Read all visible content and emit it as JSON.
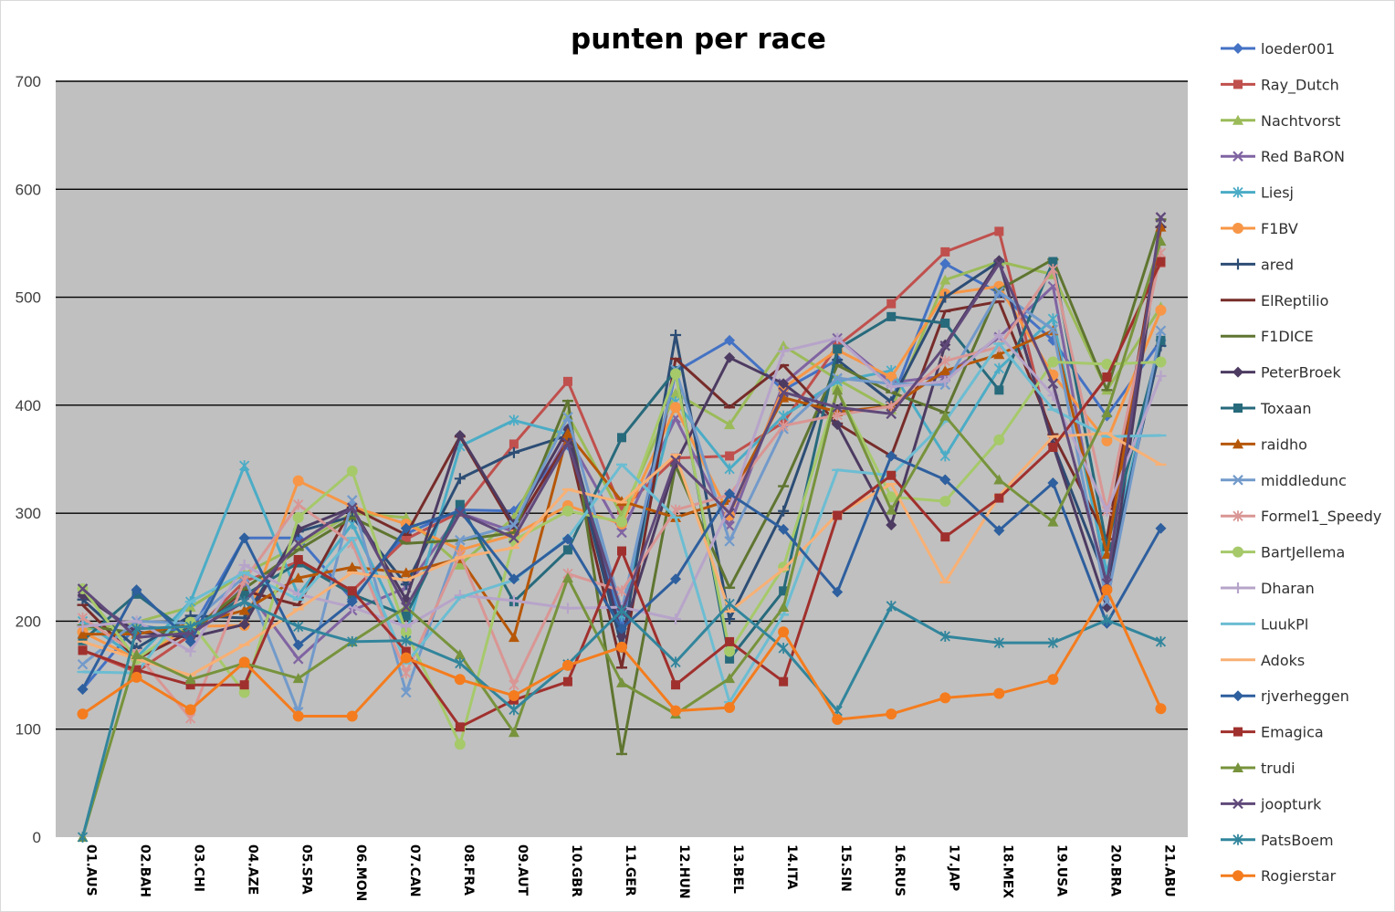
{
  "chart_data": {
    "type": "line",
    "title": "punten per race",
    "xlabel": "",
    "ylabel": "",
    "ylim": [
      0,
      700
    ],
    "yticks": [
      0,
      100,
      200,
      300,
      400,
      500,
      600,
      700
    ],
    "grid": true,
    "plot_background": "#c0c0c0",
    "legend_position": "right",
    "categories": [
      "01.AUS",
      "02.BAH",
      "03.CHI",
      "04.AZE",
      "05.SPA",
      "06.MON",
      "07.CAN",
      "08.FRA",
      "09.AUT",
      "10.GBR",
      "11.GER",
      "12.HUN",
      "13.BEL",
      "14.ITA",
      "15.SIN",
      "16.RUS",
      "17.JAP",
      "18.MEX",
      "19.USA",
      "20.BRA",
      "21.ABU"
    ],
    "series": [
      {
        "name": "loeder001",
        "color": "#4472c4",
        "marker": "diamond",
        "values": [
          137,
          196,
          190,
          277,
          277,
          220,
          281,
          303,
          302,
          363,
          197,
          431,
          460,
          414,
          442,
          403,
          531,
          504,
          460,
          390,
          460
        ]
      },
      {
        "name": "Ray_Dutch",
        "color": "#c0504d",
        "marker": "square",
        "values": [
          173,
          153,
          187,
          237,
          255,
          228,
          276,
          301,
          364,
          422,
          303,
          351,
          353,
          384,
          455,
          494,
          542,
          561,
          361,
          426,
          532
        ]
      },
      {
        "name": "Nachtvorst",
        "color": "#9bbb59",
        "marker": "triangle",
        "values": [
          192,
          199,
          213,
          244,
          270,
          300,
          296,
          252,
          296,
          391,
          298,
          411,
          382,
          455,
          424,
          396,
          516,
          533,
          521,
          414,
          491
        ]
      },
      {
        "name": "Red BaRON",
        "color": "#8064a2",
        "marker": "x",
        "values": [
          226,
          190,
          185,
          232,
          165,
          210,
          231,
          300,
          283,
          371,
          282,
          388,
          288,
          420,
          462,
          421,
          427,
          463,
          510,
          238,
          574
        ]
      },
      {
        "name": "Liesj",
        "color": "#4bacc6",
        "marker": "asterisk",
        "values": [
          200,
          166,
          218,
          344,
          224,
          290,
          188,
          362,
          386,
          373,
          205,
          403,
          341,
          390,
          422,
          432,
          353,
          434,
          480,
          245,
          458
        ]
      },
      {
        "name": "F1BV",
        "color": "#f79646",
        "marker": "circle",
        "values": [
          190,
          165,
          195,
          196,
          330,
          306,
          290,
          266,
          280,
          307,
          290,
          398,
          298,
          416,
          451,
          426,
          503,
          510,
          428,
          367,
          488
        ]
      },
      {
        "name": "ared",
        "color": "#2c4d75",
        "marker": "plus",
        "values": [
          220,
          175,
          205,
          203,
          283,
          297,
          234,
          332,
          356,
          372,
          176,
          465,
          202,
          302,
          442,
          403,
          500,
          533,
          364,
          237,
          455
        ]
      },
      {
        "name": "ElReptilio",
        "color": "#772c2a",
        "marker": "dash",
        "values": [
          215,
          165,
          190,
          228,
          215,
          305,
          280,
          371,
          286,
          367,
          157,
          443,
          398,
          437,
          383,
          353,
          487,
          496,
          373,
          276,
          565
        ]
      },
      {
        "name": "F1DICE",
        "color": "#5f7530",
        "marker": "dash",
        "values": [
          196,
          189,
          190,
          230,
          266,
          296,
          272,
          275,
          282,
          404,
          77,
          344,
          231,
          325,
          437,
          412,
          393,
          507,
          535,
          414,
          572
        ]
      },
      {
        "name": "PeterBroek",
        "color": "#4d3b62",
        "marker": "diamond",
        "values": [
          224,
          190,
          185,
          197,
          285,
          305,
          220,
          372,
          290,
          378,
          186,
          346,
          444,
          420,
          382,
          289,
          456,
          534,
          363,
          213,
          565
        ]
      },
      {
        "name": "Toxaan",
        "color": "#276a7c",
        "marker": "square",
        "values": [
          182,
          225,
          188,
          224,
          254,
          225,
          205,
          308,
          218,
          266,
          370,
          432,
          165,
          228,
          452,
          482,
          476,
          414,
          533,
          269,
          460
        ]
      },
      {
        "name": "raidho",
        "color": "#b65708",
        "marker": "triangle",
        "values": [
          188,
          188,
          197,
          210,
          240,
          250,
          245,
          258,
          185,
          374,
          311,
          296,
          312,
          407,
          394,
          399,
          432,
          447,
          469,
          262,
          565
        ]
      },
      {
        "name": "middledunc",
        "color": "#729aca",
        "marker": "x",
        "values": [
          160,
          200,
          198,
          241,
          116,
          312,
          134,
          275,
          289,
          389,
          210,
          433,
          274,
          378,
          425,
          420,
          419,
          505,
          470,
          218,
          469
        ]
      },
      {
        "name": "Formel1_Speedy",
        "color": "#d99694",
        "marker": "asterisk",
        "values": [
          203,
          170,
          110,
          238,
          308,
          272,
          152,
          262,
          141,
          244,
          228,
          303,
          317,
          381,
          391,
          399,
          441,
          454,
          526,
          302,
          541
        ]
      },
      {
        "name": "BartJellema",
        "color": "#a6c96a",
        "marker": "circle",
        "values": [
          230,
          165,
          199,
          134,
          296,
          339,
          190,
          86,
          275,
          302,
          292,
          429,
          172,
          250,
          414,
          315,
          311,
          368,
          440,
          438,
          440
        ]
      },
      {
        "name": "Dharan",
        "color": "#b7a4c9",
        "marker": "plus",
        "values": [
          195,
          200,
          172,
          252,
          225,
          213,
          195,
          224,
          219,
          212,
          213,
          202,
          305,
          450,
          462,
          417,
          422,
          465,
          409,
          302,
          427
        ]
      },
      {
        "name": "LuukPl",
        "color": "#6cbdd2",
        "marker": "dash",
        "values": [
          153,
          152,
          218,
          245,
          220,
          277,
          161,
          222,
          238,
          277,
          345,
          296,
          125,
          206,
          340,
          335,
          385,
          457,
          396,
          371,
          372
        ]
      },
      {
        "name": "Adoks",
        "color": "#f8b074",
        "marker": "dash",
        "values": [
          181,
          165,
          150,
          178,
          211,
          245,
          238,
          259,
          268,
          322,
          310,
          354,
          209,
          248,
          299,
          327,
          236,
          316,
          371,
          374,
          345
        ]
      },
      {
        "name": "rjverheggen",
        "color": "#2e5f9e",
        "marker": "diamond",
        "values": [
          137,
          229,
          181,
          277,
          178,
          218,
          286,
          302,
          239,
          276,
          193,
          239,
          318,
          285,
          227,
          353,
          331,
          284,
          328,
          198,
          286
        ]
      },
      {
        "name": "Emagica",
        "color": "#a0302d",
        "marker": "square",
        "values": [
          173,
          155,
          141,
          141,
          257,
          228,
          172,
          102,
          127,
          144,
          265,
          141,
          181,
          144,
          298,
          335,
          278,
          314,
          361,
          426,
          533
        ]
      },
      {
        "name": "trudi",
        "color": "#77933c",
        "marker": "triangle",
        "values": [
          0,
          169,
          146,
          161,
          147,
          181,
          213,
          169,
          97,
          240,
          143,
          114,
          147,
          213,
          414,
          303,
          390,
          331,
          292,
          393,
          552
        ]
      },
      {
        "name": "joopturk",
        "color": "#60497a",
        "marker": "x",
        "values": [
          230,
          185,
          189,
          218,
          272,
          305,
          213,
          300,
          277,
          365,
          208,
          349,
          300,
          412,
          398,
          392,
          455,
          531,
          420,
          235,
          574
        ]
      },
      {
        "name": "PatsBoem",
        "color": "#31859c",
        "marker": "asterisk",
        "values": [
          0,
          193,
          195,
          218,
          195,
          181,
          182,
          161,
          118,
          160,
          210,
          162,
          216,
          175,
          117,
          214,
          186,
          180,
          180,
          201,
          181
        ]
      },
      {
        "name": "Rogierstar",
        "color": "#f47c1e",
        "marker": "circle",
        "values": [
          114,
          148,
          118,
          162,
          112,
          112,
          166,
          146,
          131,
          159,
          176,
          117,
          120,
          190,
          109,
          114,
          129,
          133,
          146,
          229,
          119
        ]
      }
    ]
  }
}
